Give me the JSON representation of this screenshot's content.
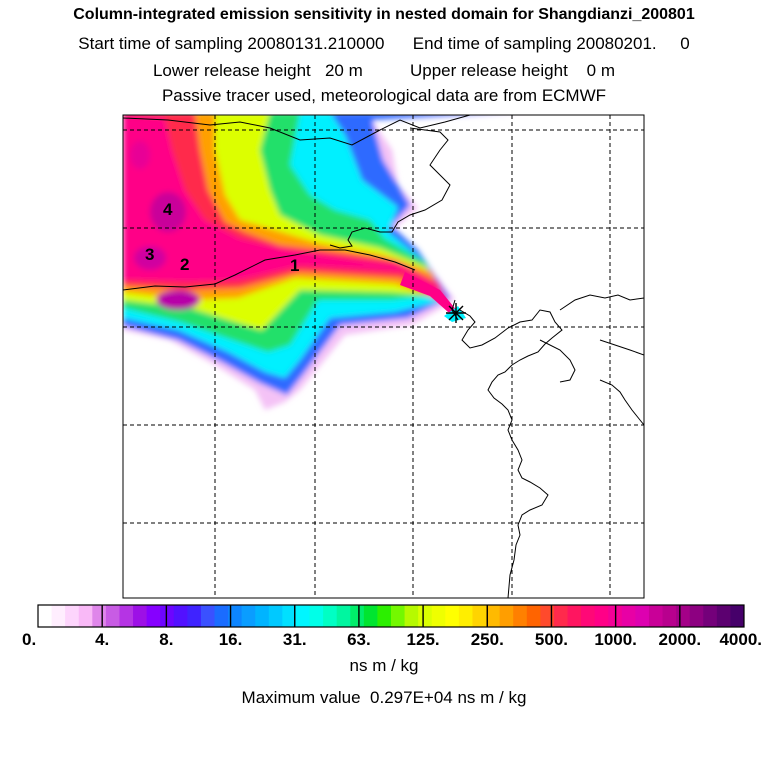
{
  "header": {
    "title": "Column-integrated emission sensitivity in nested domain for Shangdianzi_200801",
    "sampling_line": "Start time of sampling 20080131.210000      End time of sampling 20080201.     0",
    "release_line": "Lower release height   20 m          Upper release height    0 m",
    "tracer_line": "Passive tracer used, meteorological data are from ECMWF"
  },
  "map": {
    "source_markers": [
      "1",
      "2",
      "3",
      "4"
    ],
    "receptor_marker": "star-icon"
  },
  "colorbar": {
    "tick_labels": [
      "0.",
      "4.",
      "8.",
      "16.",
      "31.",
      "63.",
      "125.",
      "250.",
      "500.",
      "1000.",
      "2000.",
      "4000."
    ],
    "units": "ns m / kg",
    "colors": [
      "#ffffff",
      "#ffeefe",
      "#fdd5fc",
      "#f9b9f7",
      "#df86ea",
      "#c85ce4",
      "#b534e4",
      "#9d10e6",
      "#8600ff",
      "#6d05ff",
      "#5211ff",
      "#3f23ff",
      "#3a51ff",
      "#1a6cff",
      "#0d85ff",
      "#0a9dff",
      "#00b4ff",
      "#00c9ff",
      "#00e0ff",
      "#00f6ff",
      "#00ffe8",
      "#00ffc4",
      "#00f6a0",
      "#00ed6a",
      "#00e530",
      "#2cef00",
      "#74f800",
      "#b6fa00",
      "#dbff00",
      "#efff00",
      "#ffff00",
      "#ffee00",
      "#ffd400",
      "#ffba00",
      "#ff9e00",
      "#ff8000",
      "#ff6400",
      "#ff4a2c",
      "#ff2a4c",
      "#ff1560",
      "#ff0877",
      "#ff0087",
      "#f30096",
      "#e800a5",
      "#dd00b0",
      "#c90098",
      "#b8008e",
      "#a40088",
      "#8d0081",
      "#74007a",
      "#5c0070",
      "#46006a"
    ]
  },
  "footer": {
    "max_line": "Maximum value  0.297E+04 ns m / kg"
  }
}
